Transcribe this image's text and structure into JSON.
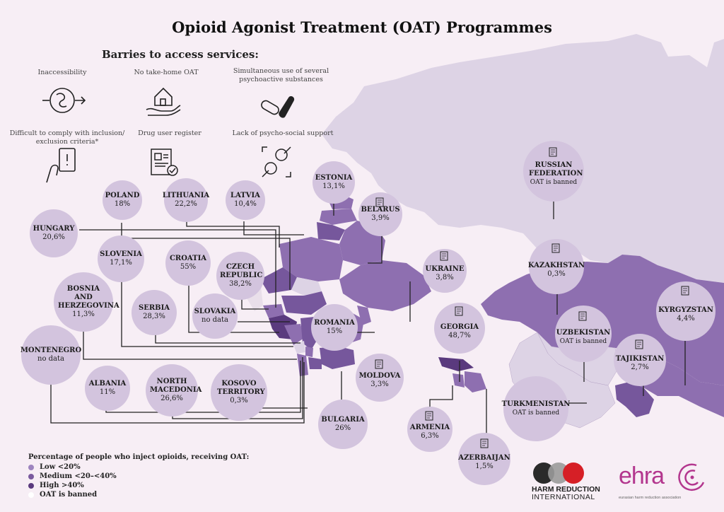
{
  "title": "Opioid Agonist Treatment (OAT) Programmes",
  "barriers": {
    "title": "Barries to access services:",
    "items": [
      {
        "label": "Inaccessibility",
        "icon": "maze-arrow-icon"
      },
      {
        "label": "No take-home OAT",
        "icon": "house-in-hand-icon"
      },
      {
        "label": "Simultaneous use of several psychoactive substances",
        "icon": "pills-icon"
      },
      {
        "label": "Difficult to comply with inclusion/ exclusion criteria*",
        "icon": "hand-card-icon"
      },
      {
        "label": "Drug user register",
        "icon": "register-document-icon"
      },
      {
        "label": "Lack of psycho-social support",
        "icon": "people-support-icon"
      }
    ]
  },
  "countries": [
    {
      "id": "estonia",
      "name": "ESTONIA",
      "value": "13,1%"
    },
    {
      "id": "belarus",
      "name": "BELARUS",
      "value": "3,9%"
    },
    {
      "id": "russian-federation",
      "name": "RUSSIAN FEDERATION",
      "value": "OAT is banned"
    },
    {
      "id": "poland",
      "name": "POLAND",
      "value": "18%"
    },
    {
      "id": "lithuania",
      "name": "LITHUANIA",
      "value": "22,2%"
    },
    {
      "id": "latvia",
      "name": "LATVIA",
      "value": "10,4%"
    },
    {
      "id": "hungary",
      "name": "HUNGARY",
      "value": "20,6%"
    },
    {
      "id": "slovenia",
      "name": "SLOVENIA",
      "value": "17,1%"
    },
    {
      "id": "croatia",
      "name": "CROATIA",
      "value": "55%"
    },
    {
      "id": "czech-republic",
      "name": "CZECH REPUBLIC",
      "value": "38,2%"
    },
    {
      "id": "ukraine",
      "name": "UKRAINE",
      "value": "3,8%"
    },
    {
      "id": "kazakhstan",
      "name": "KAZAKHSTAN",
      "value": "0,3%"
    },
    {
      "id": "bosnia",
      "name": "BOSNIA AND HERZEGOVINA",
      "value": "11,3%"
    },
    {
      "id": "serbia",
      "name": "SERBIA",
      "value": "28,3%"
    },
    {
      "id": "slovakia",
      "name": "SLOVAKIA",
      "value": "no data"
    },
    {
      "id": "romania",
      "name": "ROMANIA",
      "value": "15%"
    },
    {
      "id": "georgia",
      "name": "GEORGIA",
      "value": "48,7%"
    },
    {
      "id": "kyrgyzstan",
      "name": "KYRGYZSTAN",
      "value": "4,4%"
    },
    {
      "id": "uzbekistan",
      "name": "UZBEKISTAN",
      "value": "OAT is banned"
    },
    {
      "id": "montenegro",
      "name": "MONTENEGRO",
      "value": "no data"
    },
    {
      "id": "moldova",
      "name": "MOLDOVA",
      "value": "3,3%"
    },
    {
      "id": "tajikistan",
      "name": "TAJIKISTAN",
      "value": "2,7%"
    },
    {
      "id": "albania",
      "name": "ALBANIA",
      "value": "11%"
    },
    {
      "id": "north-macedonia",
      "name": "NORTH MACEDONIA",
      "value": "26,6%"
    },
    {
      "id": "kosovo",
      "name": "KOSOVO TERRITORY",
      "value": "0,3%"
    },
    {
      "id": "turkmenistan",
      "name": "TURKMENISTAN",
      "value": "OAT is banned"
    },
    {
      "id": "bulgaria",
      "name": "BULGARIA",
      "value": "26%"
    },
    {
      "id": "armenia",
      "name": "ARMENIA",
      "value": "6,3%"
    },
    {
      "id": "azerbaijan",
      "name": "AZERBAIJAN",
      "value": "1,5%"
    }
  ],
  "legend": {
    "title": "Percentage of people who inject opioids, receiving OAT:",
    "items": [
      {
        "label": "Low <20%",
        "color": "#9d84bf"
      },
      {
        "label": "Medium  <20–<40%",
        "color": "#7a5a9e"
      },
      {
        "label": "High >40%",
        "color": "#5a3a7e"
      },
      {
        "label": "OAT is banned",
        "color": "#ffffff"
      }
    ]
  },
  "colors": {
    "background": "#f7eef5",
    "bubble": "#d3c4de",
    "banned_land": "#ddd3e5",
    "low": "#8e6fb0",
    "medium": "#76579c",
    "high": "#5a3a7e",
    "ehra": "#b3368e"
  },
  "logos": {
    "hri_line1": "HARM REDUCTION",
    "hri_line2": "INTERNATIONAL",
    "ehra_word": "ehra",
    "ehra_sub": "eurasian harm reduction association"
  }
}
